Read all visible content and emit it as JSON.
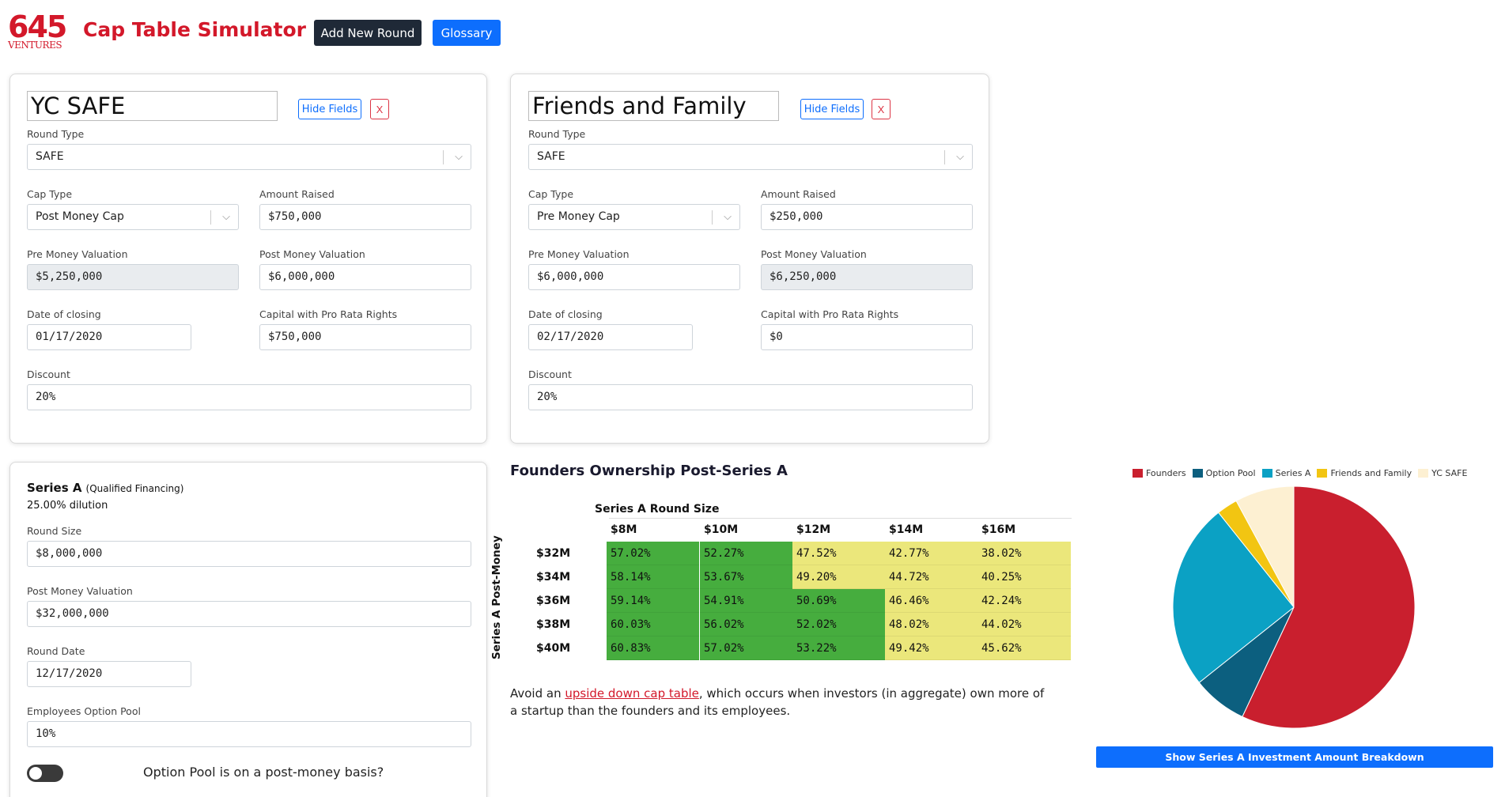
{
  "header": {
    "logo_num": "645",
    "logo_sub": "VENTURES",
    "title": "Cap Table Simulator",
    "add_round": "Add New Round",
    "glossary": "Glossary"
  },
  "rounds": [
    {
      "name": "YC SAFE",
      "hide_fields": "Hide Fields",
      "remove": "X",
      "round_type_label": "Round Type",
      "round_type": "SAFE",
      "cap_type_label": "Cap Type",
      "cap_type": "Post Money Cap",
      "amount_raised_label": "Amount Raised",
      "amount_raised": "$750,000",
      "pre_money_label": "Pre Money Valuation",
      "pre_money": "$5,250,000",
      "post_money_label": "Post Money Valuation",
      "post_money": "$6,000,000",
      "date_label": "Date of closing",
      "date": "01/17/2020",
      "pro_rata_label": "Capital with Pro Rata Rights",
      "pro_rata": "$750,000",
      "discount_label": "Discount",
      "discount": "20%"
    },
    {
      "name": "Friends and Family",
      "hide_fields": "Hide Fields",
      "remove": "X",
      "round_type_label": "Round Type",
      "round_type": "SAFE",
      "cap_type_label": "Cap Type",
      "cap_type": "Pre Money Cap",
      "amount_raised_label": "Amount Raised",
      "amount_raised": "$250,000",
      "pre_money_label": "Pre Money Valuation",
      "pre_money": "$6,000,000",
      "post_money_label": "Post Money Valuation",
      "post_money": "$6,250,000",
      "date_label": "Date of closing",
      "date": "02/17/2020",
      "pro_rata_label": "Capital with Pro Rata Rights",
      "pro_rata": "$0",
      "discount_label": "Discount",
      "discount": "20%"
    }
  ],
  "series_a": {
    "title": "Series A",
    "qualifier": "(Qualified Financing)",
    "dilution": "25.00% dilution",
    "round_size_label": "Round Size",
    "round_size": "$8,000,000",
    "post_money_label": "Post Money Valuation",
    "post_money": "$32,000,000",
    "round_date_label": "Round Date",
    "round_date": "12/17/2020",
    "option_pool_label": "Employees Option Pool",
    "option_pool": "10%",
    "toggle_label": "Option Pool is on a post-money basis?",
    "toggle_on": false
  },
  "heatmap": {
    "title": "Founders Ownership Post-Series A",
    "x_title": "Series A Round Size",
    "y_title": "Series A Post-Money",
    "columns": [
      "$8M",
      "$10M",
      "$12M",
      "$14M",
      "$16M"
    ],
    "rows": [
      "$32M",
      "$34M",
      "$36M",
      "$38M",
      "$40M"
    ],
    "cells": [
      [
        "57.02%",
        "52.27%",
        "47.52%",
        "42.77%",
        "38.02%"
      ],
      [
        "58.14%",
        "53.67%",
        "49.20%",
        "44.72%",
        "40.25%"
      ],
      [
        "59.14%",
        "54.91%",
        "50.69%",
        "46.46%",
        "42.24%"
      ],
      [
        "60.03%",
        "56.02%",
        "52.02%",
        "48.02%",
        "44.02%"
      ],
      [
        "60.83%",
        "57.02%",
        "53.22%",
        "49.42%",
        "45.62%"
      ]
    ],
    "colors": {
      "high": "#46ad3e",
      "low": "#ebe77b"
    }
  },
  "note": {
    "before": "Avoid an ",
    "link": "upside down cap table",
    "after": ", which occurs when investors (in aggregate) own more of a startup than the founders and its employees."
  },
  "chart_data": {
    "type": "pie",
    "labels": [
      "Founders",
      "Option Pool",
      "Series A",
      "Friends and Family",
      "YC SAFE"
    ],
    "values": [
      57.0,
      7.3,
      25.0,
      2.8,
      7.9
    ],
    "colors": [
      "#c91f2e",
      "#0c5f7f",
      "#0ba1c4",
      "#f2c512",
      "#fdf0d2"
    ],
    "legend_position": "top"
  },
  "pie_button": "Show Series A Investment Amount Breakdown"
}
